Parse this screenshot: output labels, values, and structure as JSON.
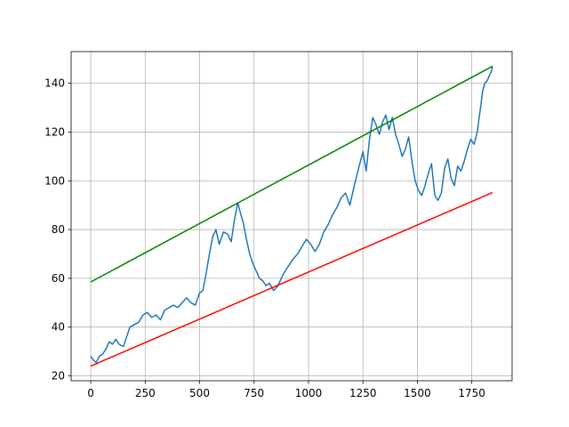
{
  "chart_data": {
    "type": "line",
    "title": "",
    "xlabel": "",
    "ylabel": "",
    "xlim": [
      -90,
      1935
    ],
    "ylim": [
      18,
      153
    ],
    "grid": true,
    "x_ticks": [
      0,
      250,
      500,
      750,
      1000,
      1250,
      1500,
      1750
    ],
    "y_ticks": [
      20,
      40,
      60,
      80,
      100,
      120,
      140
    ],
    "series": [
      {
        "color": "#1f77b4",
        "x": [
          0,
          12,
          25,
          40,
          55,
          70,
          85,
          100,
          115,
          130,
          150,
          165,
          180,
          200,
          220,
          240,
          260,
          280,
          300,
          320,
          340,
          360,
          380,
          400,
          420,
          440,
          460,
          480,
          500,
          515,
          530,
          545,
          560,
          575,
          590,
          610,
          630,
          645,
          660,
          675,
          690,
          700,
          715,
          730,
          745,
          760,
          775,
          790,
          805,
          820,
          840,
          860,
          880,
          900,
          915,
          930,
          950,
          970,
          990,
          1010,
          1030,
          1050,
          1070,
          1090,
          1110,
          1130,
          1150,
          1170,
          1190,
          1210,
          1230,
          1250,
          1265,
          1280,
          1295,
          1310,
          1325,
          1340,
          1355,
          1370,
          1385,
          1400,
          1415,
          1430,
          1445,
          1460,
          1475,
          1490,
          1505,
          1520,
          1535,
          1550,
          1565,
          1580,
          1595,
          1610,
          1625,
          1640,
          1655,
          1670,
          1685,
          1700,
          1715,
          1730,
          1745,
          1760,
          1775,
          1790,
          1800,
          1810,
          1820,
          1830,
          1840,
          1845
        ],
        "y": [
          28,
          26.5,
          25.5,
          28,
          29,
          31,
          34,
          33,
          35,
          33,
          32,
          36,
          40,
          41,
          42,
          45,
          46,
          44,
          45,
          43,
          47,
          48,
          49,
          48,
          50,
          52,
          50,
          49,
          54,
          55,
          62,
          70,
          77,
          80,
          74,
          79,
          78,
          75,
          84,
          91,
          86,
          83,
          76,
          70,
          66,
          63,
          60,
          59,
          57,
          58,
          55,
          57,
          61,
          64,
          66,
          68,
          70,
          73,
          76,
          74,
          71,
          74,
          79,
          82,
          86,
          89,
          93,
          95,
          90,
          98,
          105,
          112,
          104,
          117,
          126,
          123,
          119,
          124,
          127,
          121,
          126,
          119,
          115,
          110,
          113,
          118,
          108,
          100,
          96,
          94,
          98,
          103,
          107,
          94,
          92,
          95,
          105,
          109,
          101,
          98,
          106,
          104,
          108,
          113,
          117,
          115,
          120,
          130,
          137,
          140,
          141,
          143,
          145,
          147
        ]
      },
      {
        "color": "#008000",
        "x": [
          0,
          1845
        ],
        "y": [
          58.5,
          147
        ]
      },
      {
        "color": "#ff0000",
        "x": [
          0,
          1845
        ],
        "y": [
          24,
          95.2
        ]
      }
    ]
  }
}
